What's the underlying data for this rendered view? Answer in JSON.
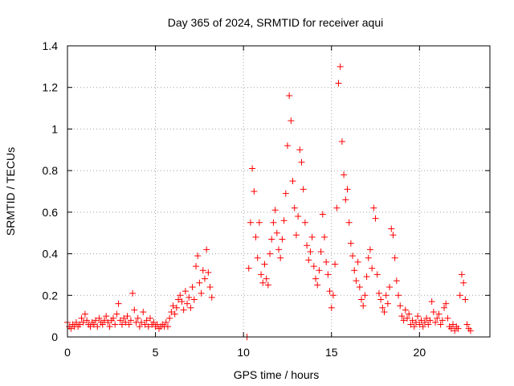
{
  "chart_data": {
    "type": "scatter",
    "title": "Day 365 of 2024, SRMTID for receiver aqui",
    "xlabel": "GPS time / hours",
    "ylabel": "SRMTID / TECUs",
    "xlim": [
      0,
      24
    ],
    "ylim": [
      0,
      1.4
    ],
    "xticks": [
      0,
      5,
      10,
      15,
      20
    ],
    "yticks": [
      0,
      0.2,
      0.4,
      0.6,
      0.8,
      1,
      1.2,
      1.4
    ],
    "xtick_labels": [
      "0",
      "5",
      "10",
      "15",
      "20"
    ],
    "ytick_labels": [
      "0",
      "0.2",
      "0.4",
      "0.6",
      "0.8",
      "1",
      "1.2",
      "1.4"
    ],
    "grid": true,
    "marker": "+",
    "color": "#ff0000",
    "series": [
      {
        "name": "SRMTID",
        "points": [
          [
            0.0,
            0.07
          ],
          [
            0.1,
            0.05
          ],
          [
            0.2,
            0.04
          ],
          [
            0.3,
            0.06
          ],
          [
            0.4,
            0.05
          ],
          [
            0.5,
            0.07
          ],
          [
            0.6,
            0.05
          ],
          [
            0.7,
            0.06
          ],
          [
            0.8,
            0.09
          ],
          [
            0.9,
            0.07
          ],
          [
            1.0,
            0.11
          ],
          [
            1.1,
            0.08
          ],
          [
            1.2,
            0.06
          ],
          [
            1.3,
            0.05
          ],
          [
            1.4,
            0.07
          ],
          [
            1.5,
            0.06
          ],
          [
            1.6,
            0.08
          ],
          [
            1.7,
            0.05
          ],
          [
            1.8,
            0.09
          ],
          [
            1.9,
            0.07
          ],
          [
            2.0,
            0.06
          ],
          [
            2.1,
            0.08
          ],
          [
            2.2,
            0.1
          ],
          [
            2.3,
            0.07
          ],
          [
            2.4,
            0.05
          ],
          [
            2.5,
            0.08
          ],
          [
            2.6,
            0.09
          ],
          [
            2.7,
            0.06
          ],
          [
            2.8,
            0.11
          ],
          [
            2.9,
            0.16
          ],
          [
            3.0,
            0.08
          ],
          [
            3.1,
            0.06
          ],
          [
            3.2,
            0.09
          ],
          [
            3.3,
            0.07
          ],
          [
            3.4,
            0.1
          ],
          [
            3.5,
            0.06
          ],
          [
            3.6,
            0.08
          ],
          [
            3.7,
            0.21
          ],
          [
            3.8,
            0.13
          ],
          [
            3.9,
            0.07
          ],
          [
            4.0,
            0.09
          ],
          [
            4.1,
            0.05
          ],
          [
            4.2,
            0.07
          ],
          [
            4.3,
            0.12
          ],
          [
            4.4,
            0.06
          ],
          [
            4.5,
            0.08
          ],
          [
            4.6,
            0.05
          ],
          [
            4.7,
            0.09
          ],
          [
            4.8,
            0.06
          ],
          [
            4.9,
            0.07
          ],
          [
            5.0,
            0.05
          ],
          [
            5.1,
            0.06
          ],
          [
            5.2,
            0.04
          ],
          [
            5.3,
            0.05
          ],
          [
            5.4,
            0.06
          ],
          [
            5.5,
            0.05
          ],
          [
            5.6,
            0.07
          ],
          [
            5.7,
            0.05
          ],
          [
            5.8,
            0.09
          ],
          [
            5.9,
            0.12
          ],
          [
            6.0,
            0.15
          ],
          [
            6.1,
            0.11
          ],
          [
            6.2,
            0.14
          ],
          [
            6.3,
            0.18
          ],
          [
            6.4,
            0.2
          ],
          [
            6.5,
            0.17
          ],
          [
            6.6,
            0.13
          ],
          [
            6.7,
            0.22
          ],
          [
            6.8,
            0.16
          ],
          [
            6.9,
            0.19
          ],
          [
            7.0,
            0.14
          ],
          [
            7.1,
            0.24
          ],
          [
            7.2,
            0.18
          ],
          [
            7.3,
            0.34
          ],
          [
            7.4,
            0.39
          ],
          [
            7.5,
            0.26
          ],
          [
            7.6,
            0.21
          ],
          [
            7.7,
            0.32
          ],
          [
            7.8,
            0.28
          ],
          [
            7.9,
            0.42
          ],
          [
            8.0,
            0.31
          ],
          [
            8.1,
            0.24
          ],
          [
            8.2,
            0.19
          ],
          [
            10.2,
            0.0
          ],
          [
            10.3,
            0.33
          ],
          [
            10.4,
            0.55
          ],
          [
            10.5,
            0.81
          ],
          [
            10.6,
            0.7
          ],
          [
            10.7,
            0.48
          ],
          [
            10.8,
            0.38
          ],
          [
            10.9,
            0.55
          ],
          [
            11.0,
            0.3
          ],
          [
            11.1,
            0.26
          ],
          [
            11.2,
            0.35
          ],
          [
            11.3,
            0.28
          ],
          [
            11.4,
            0.25
          ],
          [
            11.5,
            0.4
          ],
          [
            11.6,
            0.47
          ],
          [
            11.7,
            0.55
          ],
          [
            11.8,
            0.61
          ],
          [
            11.9,
            0.5
          ],
          [
            12.0,
            0.42
          ],
          [
            12.1,
            0.38
          ],
          [
            12.2,
            0.47
          ],
          [
            12.3,
            0.56
          ],
          [
            12.4,
            0.69
          ],
          [
            12.5,
            0.92
          ],
          [
            12.6,
            1.16
          ],
          [
            12.7,
            1.04
          ],
          [
            12.8,
            0.75
          ],
          [
            12.9,
            0.62
          ],
          [
            13.0,
            0.49
          ],
          [
            13.1,
            0.58
          ],
          [
            13.2,
            0.9
          ],
          [
            13.3,
            0.84
          ],
          [
            13.4,
            0.71
          ],
          [
            13.5,
            0.55
          ],
          [
            13.6,
            0.44
          ],
          [
            13.7,
            0.37
          ],
          [
            13.8,
            0.41
          ],
          [
            13.9,
            0.48
          ],
          [
            14.0,
            0.34
          ],
          [
            14.1,
            0.28
          ],
          [
            14.2,
            0.25
          ],
          [
            14.3,
            0.32
          ],
          [
            14.4,
            0.41
          ],
          [
            14.5,
            0.59
          ],
          [
            14.6,
            0.48
          ],
          [
            14.7,
            0.36
          ],
          [
            14.8,
            0.3
          ],
          [
            14.9,
            0.22
          ],
          [
            15.0,
            0.14
          ],
          [
            15.1,
            0.2
          ],
          [
            15.2,
            0.35
          ],
          [
            15.3,
            0.62
          ],
          [
            15.4,
            1.22
          ],
          [
            15.5,
            1.3
          ],
          [
            15.6,
            0.94
          ],
          [
            15.7,
            0.78
          ],
          [
            15.8,
            0.66
          ],
          [
            15.9,
            0.71
          ],
          [
            16.0,
            0.55
          ],
          [
            16.1,
            0.45
          ],
          [
            16.2,
            0.39
          ],
          [
            16.3,
            0.32
          ],
          [
            16.4,
            0.27
          ],
          [
            16.5,
            0.36
          ],
          [
            16.6,
            0.24
          ],
          [
            16.7,
            0.18
          ],
          [
            16.8,
            0.15
          ],
          [
            16.9,
            0.2
          ],
          [
            17.0,
            0.29
          ],
          [
            17.1,
            0.38
          ],
          [
            17.2,
            0.42
          ],
          [
            17.3,
            0.33
          ],
          [
            17.4,
            0.62
          ],
          [
            17.5,
            0.57
          ],
          [
            17.6,
            0.3
          ],
          [
            17.7,
            0.21
          ],
          [
            17.8,
            0.18
          ],
          [
            17.9,
            0.14
          ],
          [
            18.0,
            0.12
          ],
          [
            18.1,
            0.2
          ],
          [
            18.2,
            0.16
          ],
          [
            18.3,
            0.24
          ],
          [
            18.4,
            0.52
          ],
          [
            18.5,
            0.49
          ],
          [
            18.6,
            0.38
          ],
          [
            18.7,
            0.27
          ],
          [
            18.8,
            0.2
          ],
          [
            18.9,
            0.15
          ],
          [
            19.0,
            0.1
          ],
          [
            19.1,
            0.08
          ],
          [
            19.2,
            0.13
          ],
          [
            19.3,
            0.09
          ],
          [
            19.4,
            0.11
          ],
          [
            19.5,
            0.06
          ],
          [
            19.6,
            0.08
          ],
          [
            19.7,
            0.05
          ],
          [
            19.8,
            0.07
          ],
          [
            19.9,
            0.1
          ],
          [
            20.0,
            0.06
          ],
          [
            20.1,
            0.08
          ],
          [
            20.2,
            0.05
          ],
          [
            20.3,
            0.07
          ],
          [
            20.4,
            0.09
          ],
          [
            20.5,
            0.06
          ],
          [
            20.6,
            0.08
          ],
          [
            20.7,
            0.17
          ],
          [
            20.8,
            0.12
          ],
          [
            20.9,
            0.07
          ],
          [
            21.0,
            0.09
          ],
          [
            21.1,
            0.11
          ],
          [
            21.2,
            0.06
          ],
          [
            21.3,
            0.08
          ],
          [
            21.4,
            0.14
          ],
          [
            21.5,
            0.16
          ],
          [
            21.6,
            0.09
          ],
          [
            21.7,
            0.05
          ],
          [
            21.8,
            0.04
          ],
          [
            21.9,
            0.06
          ],
          [
            22.0,
            0.03
          ],
          [
            22.1,
            0.05
          ],
          [
            22.2,
            0.04
          ],
          [
            22.3,
            0.2
          ],
          [
            22.4,
            0.3
          ],
          [
            22.5,
            0.26
          ],
          [
            22.6,
            0.18
          ],
          [
            22.7,
            0.06
          ],
          [
            22.8,
            0.04
          ],
          [
            22.9,
            0.03
          ]
        ]
      }
    ]
  }
}
